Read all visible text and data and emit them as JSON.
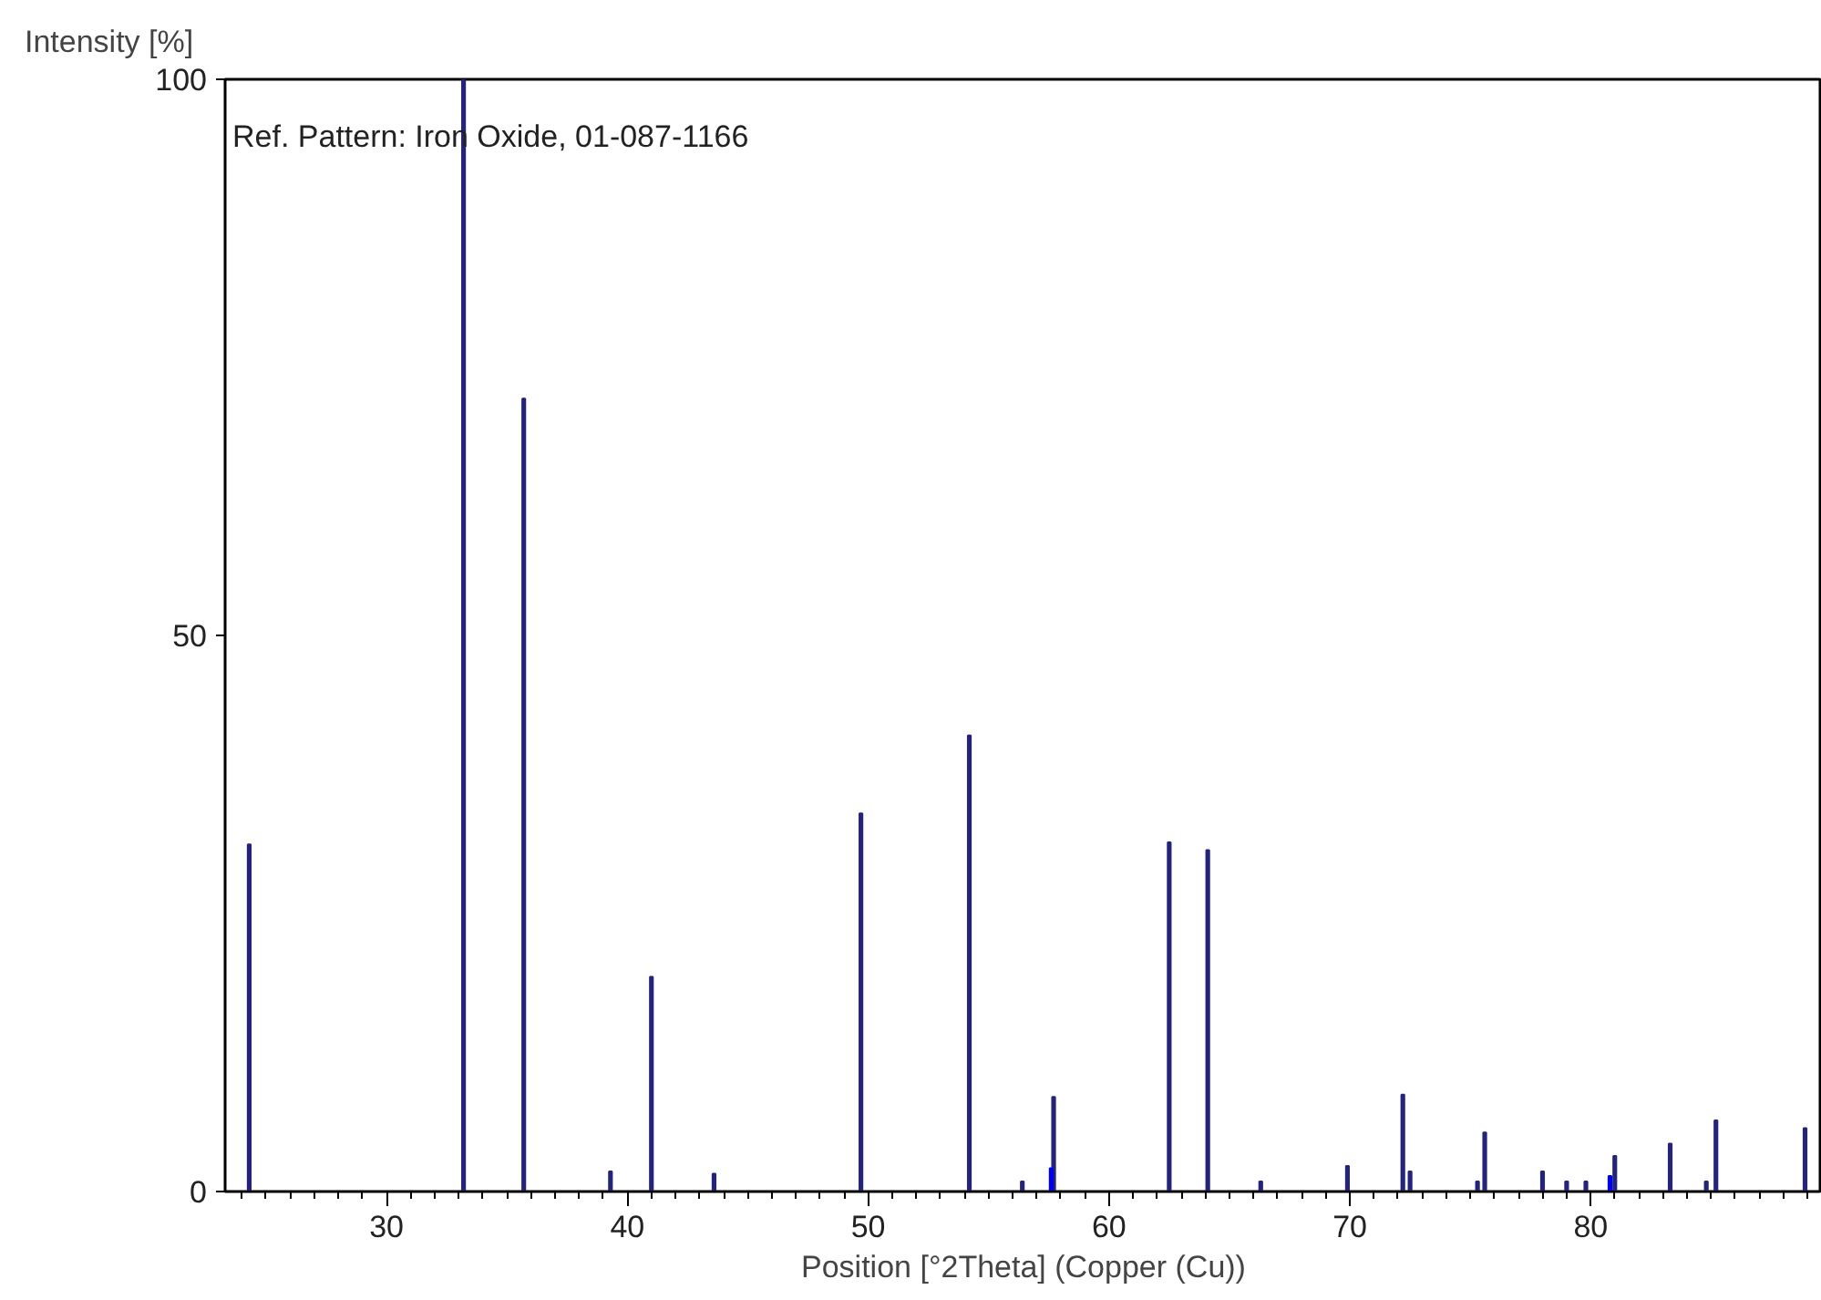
{
  "chart_data": {
    "type": "bar",
    "xlabel": "Position [°2Theta] (Copper (Cu))",
    "ylabel": "Intensity [%]",
    "annotations": [
      "Ref. Pattern: Iron Oxide, 01-087-1166"
    ],
    "x": [
      24.3,
      33.2,
      35.7,
      39.3,
      41.0,
      43.6,
      49.7,
      54.2,
      56.4,
      57.6,
      57.7,
      62.5,
      64.1,
      66.3,
      69.9,
      72.2,
      72.5,
      75.3,
      75.6,
      78.0,
      79.0,
      79.8,
      80.8,
      81.0,
      83.3,
      84.8,
      85.2,
      88.9
    ],
    "values": [
      31.2,
      100,
      71.3,
      1.8,
      19.3,
      1.6,
      34,
      41,
      0.9,
      2.1,
      8.5,
      31.4,
      30.7,
      0.9,
      2.3,
      8.7,
      1.8,
      0.9,
      5.3,
      1.8,
      0.9,
      0.9,
      1.4,
      3.2,
      4.3,
      0.9,
      6.4,
      5.7
    ],
    "colors": [
      "#24247a",
      "#24247a",
      "#24247a",
      "#24247a",
      "#24247a",
      "#24247a",
      "#24247a",
      "#24247a",
      "#24247a",
      "#0000ee",
      "#24247a",
      "#24247a",
      "#24247a",
      "#24247a",
      "#24247a",
      "#24247a",
      "#24247a",
      "#24247a",
      "#24247a",
      "#24247a",
      "#24247a",
      "#24247a",
      "#0000ee",
      "#24247a",
      "#24247a",
      "#24247a",
      "#24247a",
      "#24247a"
    ],
    "xlim": [
      23.3,
      89.6
    ],
    "ylim": [
      0,
      100
    ],
    "xticks": [
      30,
      40,
      50,
      60,
      70,
      80
    ],
    "yticks": [
      0,
      50,
      100
    ],
    "grid": false
  }
}
